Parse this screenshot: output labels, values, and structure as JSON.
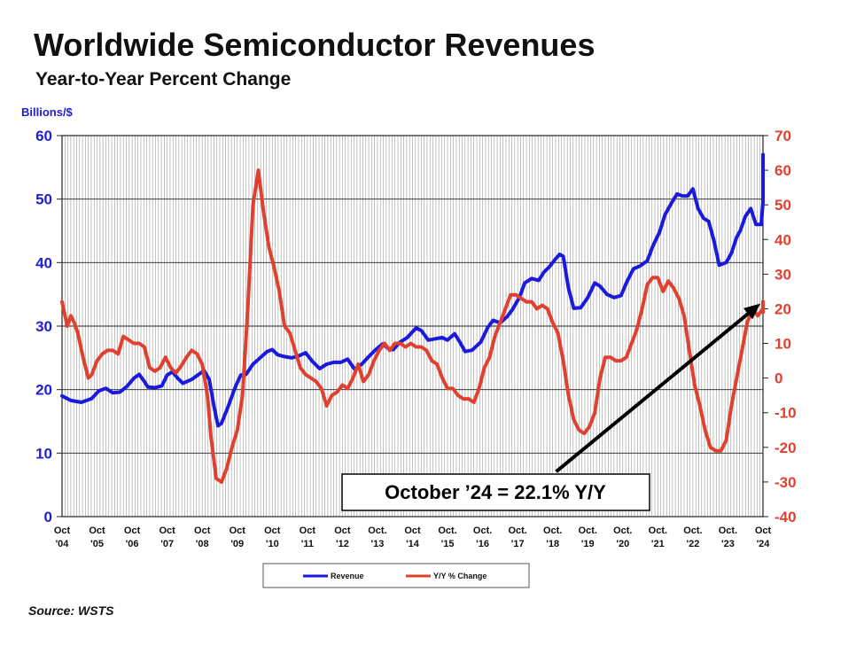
{
  "chart_data": {
    "type": "line",
    "title": "Worldwide Semiconductor Revenues",
    "subtitle": "Year-to-Year Percent Change",
    "ylabel_left": "Billions/$",
    "ylim_left": [
      0,
      60
    ],
    "yticks_left": [
      "0",
      "10",
      "20",
      "30",
      "40",
      "50",
      "60"
    ],
    "ylim_right": [
      -40,
      70
    ],
    "yticks_right": [
      "-40",
      "-30",
      "-20",
      "-10",
      "0",
      "10",
      "20",
      "30",
      "40",
      "50",
      "60",
      "70"
    ],
    "x_range": [
      2004.75,
      2024.75
    ],
    "x_ticks": [
      {
        "month": "Oct",
        "year": "'04"
      },
      {
        "month": "Oct",
        "year": "'05"
      },
      {
        "month": "Oct",
        "year": "'06"
      },
      {
        "month": "Oct",
        "year": "'07"
      },
      {
        "month": "Oct",
        "year": "'08"
      },
      {
        "month": "Oct",
        "year": "'09"
      },
      {
        "month": "Oct",
        "year": "'10"
      },
      {
        "month": "Oct",
        "year": "'11"
      },
      {
        "month": "Oct",
        "year": "'12"
      },
      {
        "month": "Oct.",
        "year": "'13"
      },
      {
        "month": "Oct",
        "year": "'14"
      },
      {
        "month": "Oct.",
        "year": "'15"
      },
      {
        "month": "Oct.",
        "year": "'16"
      },
      {
        "month": "Oct.",
        "year": "'17"
      },
      {
        "month": "Oct.",
        "year": "'18"
      },
      {
        "month": "Oct.",
        "year": "'19"
      },
      {
        "month": "Oct.",
        "year": "'20"
      },
      {
        "month": "Oct.",
        "year": "'21"
      },
      {
        "month": "Oct.",
        "year": "'22"
      },
      {
        "month": "Oct.",
        "year": "'23"
      },
      {
        "month": "Oct",
        "year": "'24"
      }
    ],
    "grid": "vertical monthly lines, horizontal lines at left-axis ticks",
    "legend_placement": "bottom-center",
    "series": [
      {
        "name": "Revenue",
        "axis": "left",
        "color": "#1a1adc",
        "points": [
          [
            2004.75,
            19
          ],
          [
            2005.0,
            18.3
          ],
          [
            2005.3,
            18
          ],
          [
            2005.6,
            18.6
          ],
          [
            2005.8,
            19.8
          ],
          [
            2006.0,
            20.2
          ],
          [
            2006.2,
            19.5
          ],
          [
            2006.4,
            19.6
          ],
          [
            2006.6,
            20.5
          ],
          [
            2006.8,
            21.8
          ],
          [
            2006.95,
            22.4
          ],
          [
            2007.1,
            21.3
          ],
          [
            2007.2,
            20.4
          ],
          [
            2007.4,
            20.3
          ],
          [
            2007.6,
            20.6
          ],
          [
            2007.75,
            22.3
          ],
          [
            2007.9,
            22.8
          ],
          [
            2008.05,
            21.8
          ],
          [
            2008.2,
            21.0
          ],
          [
            2008.45,
            21.6
          ],
          [
            2008.6,
            22.2
          ],
          [
            2008.8,
            23.0
          ],
          [
            2008.95,
            21.6
          ],
          [
            2009.1,
            17.0
          ],
          [
            2009.2,
            14.3
          ],
          [
            2009.3,
            14.7
          ],
          [
            2009.5,
            17.5
          ],
          [
            2009.7,
            20.5
          ],
          [
            2009.85,
            22.3
          ],
          [
            2010.0,
            22.4
          ],
          [
            2010.2,
            24.0
          ],
          [
            2010.4,
            25.0
          ],
          [
            2010.6,
            26.0
          ],
          [
            2010.75,
            26.3
          ],
          [
            2010.9,
            25.5
          ],
          [
            2011.1,
            25.2
          ],
          [
            2011.3,
            25.0
          ],
          [
            2011.5,
            25.3
          ],
          [
            2011.7,
            25.8
          ],
          [
            2011.9,
            24.4
          ],
          [
            2012.1,
            23.3
          ],
          [
            2012.3,
            24.0
          ],
          [
            2012.5,
            24.3
          ],
          [
            2012.7,
            24.3
          ],
          [
            2012.9,
            24.8
          ],
          [
            2013.1,
            23.2
          ],
          [
            2013.3,
            24.0
          ],
          [
            2013.5,
            25.2
          ],
          [
            2013.7,
            26.3
          ],
          [
            2013.9,
            27.2
          ],
          [
            2014.05,
            26.5
          ],
          [
            2014.2,
            26.3
          ],
          [
            2014.4,
            27.5
          ],
          [
            2014.6,
            28.2
          ],
          [
            2014.85,
            29.7
          ],
          [
            2015.0,
            29.3
          ],
          [
            2015.2,
            27.8
          ],
          [
            2015.4,
            28.0
          ],
          [
            2015.6,
            28.2
          ],
          [
            2015.75,
            27.8
          ],
          [
            2015.95,
            28.8
          ],
          [
            2016.1,
            27.5
          ],
          [
            2016.25,
            26.0
          ],
          [
            2016.45,
            26.2
          ],
          [
            2016.7,
            27.5
          ],
          [
            2016.9,
            29.8
          ],
          [
            2017.05,
            30.9
          ],
          [
            2017.25,
            30.5
          ],
          [
            2017.45,
            31.5
          ],
          [
            2017.6,
            32.6
          ],
          [
            2017.8,
            34.5
          ],
          [
            2017.95,
            36.8
          ],
          [
            2018.15,
            37.5
          ],
          [
            2018.35,
            37.2
          ],
          [
            2018.5,
            38.5
          ],
          [
            2018.65,
            39.3
          ],
          [
            2018.85,
            40.7
          ],
          [
            2018.95,
            41.3
          ],
          [
            2019.05,
            41.0
          ],
          [
            2019.2,
            36.0
          ],
          [
            2019.35,
            32.8
          ],
          [
            2019.55,
            32.9
          ],
          [
            2019.75,
            34.5
          ],
          [
            2019.95,
            36.8
          ],
          [
            2020.1,
            36.3
          ],
          [
            2020.3,
            35.0
          ],
          [
            2020.5,
            34.5
          ],
          [
            2020.7,
            34.8
          ],
          [
            2020.85,
            36.8
          ],
          [
            2021.05,
            39.0
          ],
          [
            2021.25,
            39.5
          ],
          [
            2021.45,
            40.3
          ],
          [
            2021.6,
            42.5
          ],
          [
            2021.8,
            44.8
          ],
          [
            2021.95,
            47.5
          ],
          [
            2022.15,
            49.5
          ],
          [
            2022.3,
            50.8
          ],
          [
            2022.45,
            50.5
          ],
          [
            2022.6,
            50.5
          ],
          [
            2022.75,
            51.6
          ],
          [
            2022.9,
            48.5
          ],
          [
            2023.05,
            47.0
          ],
          [
            2023.2,
            46.5
          ],
          [
            2023.35,
            43.5
          ],
          [
            2023.5,
            39.6
          ],
          [
            2023.7,
            40.0
          ],
          [
            2023.85,
            41.5
          ],
          [
            2024.0,
            44.0
          ],
          [
            2024.1,
            45.0
          ],
          [
            2024.25,
            47.3
          ],
          [
            2024.4,
            48.5
          ],
          [
            2024.55,
            46.0
          ],
          [
            2024.7,
            46.0
          ],
          [
            2024.85,
            49.5
          ],
          [
            2025.0,
            51.0
          ],
          [
            2025.15,
            54.0
          ],
          [
            2025.3,
            56.5
          ],
          [
            2025.4,
            57.0
          ]
        ]
      },
      {
        "name": "Y/Y % Change",
        "axis": "right",
        "color": "#e0402f",
        "points": [
          [
            2004.75,
            22
          ],
          [
            2004.9,
            15
          ],
          [
            2005.0,
            18
          ],
          [
            2005.1,
            16
          ],
          [
            2005.2,
            13
          ],
          [
            2005.35,
            6
          ],
          [
            2005.5,
            0
          ],
          [
            2005.6,
            1
          ],
          [
            2005.75,
            5
          ],
          [
            2005.9,
            7
          ],
          [
            2006.05,
            8
          ],
          [
            2006.2,
            8
          ],
          [
            2006.35,
            7
          ],
          [
            2006.5,
            12
          ],
          [
            2006.65,
            11
          ],
          [
            2006.8,
            10
          ],
          [
            2006.95,
            10
          ],
          [
            2007.1,
            9
          ],
          [
            2007.25,
            3
          ],
          [
            2007.4,
            2
          ],
          [
            2007.55,
            3
          ],
          [
            2007.7,
            6
          ],
          [
            2007.85,
            3
          ],
          [
            2008.0,
            1.5
          ],
          [
            2008.15,
            3.5
          ],
          [
            2008.3,
            6
          ],
          [
            2008.45,
            8
          ],
          [
            2008.6,
            7
          ],
          [
            2008.75,
            4
          ],
          [
            2008.9,
            -5
          ],
          [
            2009.0,
            -17
          ],
          [
            2009.15,
            -29
          ],
          [
            2009.3,
            -30
          ],
          [
            2009.45,
            -26
          ],
          [
            2009.6,
            -20
          ],
          [
            2009.75,
            -15
          ],
          [
            2009.9,
            -5
          ],
          [
            2010.05,
            20
          ],
          [
            2010.2,
            50
          ],
          [
            2010.35,
            60
          ],
          [
            2010.5,
            48
          ],
          [
            2010.65,
            38
          ],
          [
            2010.8,
            32
          ],
          [
            2010.95,
            25
          ],
          [
            2011.1,
            15
          ],
          [
            2011.25,
            13
          ],
          [
            2011.4,
            8
          ],
          [
            2011.55,
            3
          ],
          [
            2011.7,
            1
          ],
          [
            2011.85,
            0
          ],
          [
            2012.0,
            -1
          ],
          [
            2012.15,
            -3
          ],
          [
            2012.3,
            -8
          ],
          [
            2012.45,
            -5
          ],
          [
            2012.6,
            -4
          ],
          [
            2012.75,
            -2
          ],
          [
            2012.9,
            -3
          ],
          [
            2013.05,
            0
          ],
          [
            2013.2,
            4
          ],
          [
            2013.35,
            -1
          ],
          [
            2013.5,
            1
          ],
          [
            2013.65,
            5
          ],
          [
            2013.8,
            8
          ],
          [
            2013.95,
            10
          ],
          [
            2014.1,
            8
          ],
          [
            2014.25,
            10
          ],
          [
            2014.4,
            10
          ],
          [
            2014.55,
            9
          ],
          [
            2014.7,
            10
          ],
          [
            2014.85,
            9
          ],
          [
            2015.0,
            9
          ],
          [
            2015.15,
            8
          ],
          [
            2015.3,
            5
          ],
          [
            2015.45,
            4
          ],
          [
            2015.6,
            0
          ],
          [
            2015.75,
            -3
          ],
          [
            2015.9,
            -3
          ],
          [
            2016.05,
            -5
          ],
          [
            2016.2,
            -6
          ],
          [
            2016.35,
            -6
          ],
          [
            2016.5,
            -7
          ],
          [
            2016.65,
            -3
          ],
          [
            2016.8,
            3
          ],
          [
            2016.95,
            6
          ],
          [
            2017.1,
            12
          ],
          [
            2017.25,
            16
          ],
          [
            2017.4,
            20
          ],
          [
            2017.55,
            24
          ],
          [
            2017.7,
            24
          ],
          [
            2017.85,
            23
          ],
          [
            2018.0,
            22
          ],
          [
            2018.15,
            22
          ],
          [
            2018.3,
            20
          ],
          [
            2018.45,
            21
          ],
          [
            2018.6,
            20
          ],
          [
            2018.75,
            16
          ],
          [
            2018.9,
            13
          ],
          [
            2019.05,
            5
          ],
          [
            2019.2,
            -5
          ],
          [
            2019.35,
            -12
          ],
          [
            2019.5,
            -15
          ],
          [
            2019.65,
            -16
          ],
          [
            2019.8,
            -14
          ],
          [
            2019.95,
            -10
          ],
          [
            2020.1,
            0
          ],
          [
            2020.25,
            6
          ],
          [
            2020.4,
            6
          ],
          [
            2020.55,
            5
          ],
          [
            2020.7,
            5
          ],
          [
            2020.85,
            6
          ],
          [
            2021.0,
            10
          ],
          [
            2021.15,
            14
          ],
          [
            2021.3,
            20
          ],
          [
            2021.45,
            27
          ],
          [
            2021.6,
            29
          ],
          [
            2021.75,
            29
          ],
          [
            2021.9,
            25
          ],
          [
            2022.05,
            28
          ],
          [
            2022.2,
            26
          ],
          [
            2022.35,
            23
          ],
          [
            2022.5,
            18
          ],
          [
            2022.65,
            8
          ],
          [
            2022.8,
            -2
          ],
          [
            2022.95,
            -8
          ],
          [
            2023.1,
            -15
          ],
          [
            2023.25,
            -20
          ],
          [
            2023.4,
            -21
          ],
          [
            2023.55,
            -21
          ],
          [
            2023.7,
            -18
          ],
          [
            2023.85,
            -8
          ],
          [
            2024.0,
            0
          ],
          [
            2024.15,
            8
          ],
          [
            2024.3,
            16
          ],
          [
            2024.45,
            20
          ],
          [
            2024.6,
            18
          ],
          [
            2024.75,
            20
          ],
          [
            2024.9,
            19
          ],
          [
            2025.05,
            20
          ],
          [
            2025.2,
            22
          ],
          [
            2025.35,
            22.1
          ]
        ]
      }
    ],
    "annotation": {
      "text": "October ’24 = 22.1% Y/Y",
      "arrow_from": [
        2018.85,
        -27
      ],
      "arrow_to": [
        2025.3,
        21.5
      ]
    },
    "source": "Source: WSTS"
  }
}
